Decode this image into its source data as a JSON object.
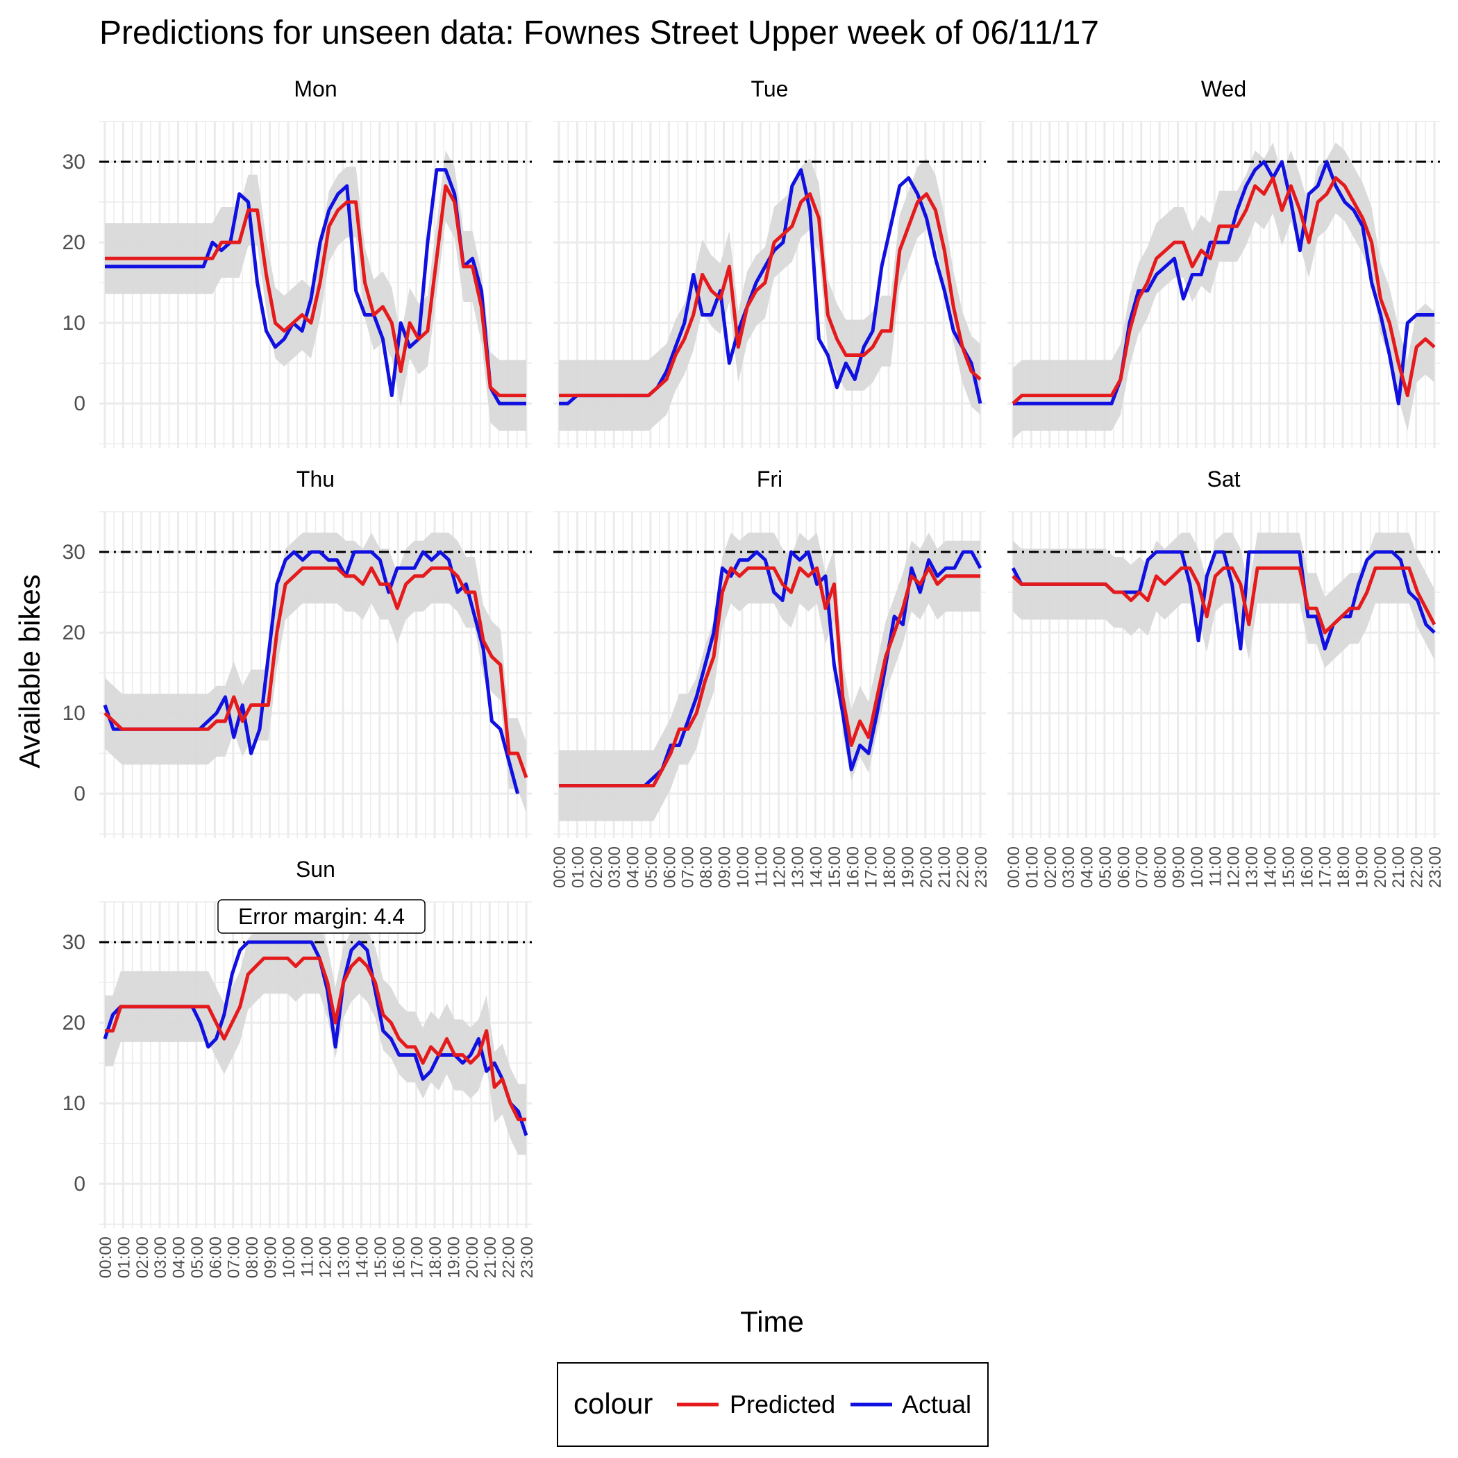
{
  "chart_data": {
    "type": "line",
    "title": "Predictions for unseen data: Fownes Street Upper week of 06/11/17",
    "xlabel": "Time",
    "ylabel": "Available bikes",
    "ylim": [
      -5.5,
      35
    ],
    "yticks": [
      0,
      10,
      20,
      30
    ],
    "capacity_line": 30,
    "grid": true,
    "x_tick_labels": [
      "00:00",
      "01:00",
      "02:00",
      "03:00",
      "04:00",
      "05:00",
      "06:00",
      "07:00",
      "08:00",
      "09:00",
      "10:00",
      "11:00",
      "12:00",
      "13:00",
      "14:00",
      "15:00",
      "16:00",
      "17:00",
      "18:00",
      "19:00",
      "20:00",
      "21:00",
      "22:00",
      "23:00"
    ],
    "error_margin": 4.4,
    "annotation": "Error margin: 4.4",
    "colors": {
      "Predicted": "#e41a1c",
      "Actual": "#1010e0",
      "band": "#d9d9d9",
      "capacity": "#000000"
    },
    "legend": {
      "title": "colour",
      "position": "bottom",
      "entries": [
        "Predicted",
        "Actual"
      ]
    },
    "panels": [
      {
        "name": "Mon",
        "Actual": [
          17,
          17,
          17,
          17,
          17,
          17,
          17,
          17,
          17,
          17,
          17,
          17,
          20,
          19,
          20,
          26,
          25,
          15,
          9,
          7,
          8,
          10,
          9,
          13,
          20,
          24,
          26,
          27,
          14,
          11,
          11,
          8,
          1,
          10,
          7,
          8,
          20,
          29,
          29,
          26,
          17,
          18,
          14,
          2,
          0,
          0,
          0,
          0
        ],
        "Predicted": [
          18,
          18,
          18,
          18,
          18,
          18,
          18,
          18,
          18,
          18,
          18,
          18,
          18,
          20,
          20,
          20,
          24,
          24,
          16,
          10,
          9,
          10,
          11,
          10,
          15,
          22,
          24,
          25,
          25,
          15,
          11,
          12,
          10,
          4,
          10,
          8,
          9,
          18,
          27,
          25,
          17,
          17,
          12,
          2,
          1,
          1,
          1,
          1
        ]
      },
      {
        "name": "Tue",
        "Actual": [
          0,
          0,
          1,
          1,
          1,
          1,
          1,
          1,
          1,
          1,
          1,
          2,
          4,
          7,
          10,
          16,
          11,
          11,
          14,
          5,
          9,
          12,
          15,
          17,
          19,
          20,
          27,
          29,
          24,
          8,
          6,
          2,
          5,
          3,
          7,
          9,
          17,
          22,
          27,
          28,
          26,
          23,
          18,
          14,
          9,
          7,
          5,
          0
        ],
        "Predicted": [
          1,
          1,
          1,
          1,
          1,
          1,
          1,
          1,
          1,
          1,
          1,
          2,
          3,
          6,
          8,
          11,
          16,
          14,
          13,
          17,
          7,
          12,
          14,
          15,
          20,
          21,
          22,
          25,
          26,
          23,
          11,
          8,
          6,
          6,
          6,
          7,
          9,
          9,
          19,
          22,
          25,
          26,
          24,
          19,
          12,
          7,
          4,
          3
        ]
      },
      {
        "name": "Wed",
        "Actual": [
          0,
          0,
          0,
          0,
          0,
          0,
          0,
          0,
          0,
          0,
          0,
          0,
          3,
          10,
          14,
          14,
          16,
          17,
          18,
          13,
          16,
          16,
          20,
          20,
          20,
          24,
          27,
          29,
          30,
          28,
          30,
          25,
          19,
          26,
          27,
          30,
          27,
          25,
          24,
          22,
          15,
          11,
          6,
          0,
          10,
          11,
          11,
          11
        ],
        "Predicted": [
          0,
          1,
          1,
          1,
          1,
          1,
          1,
          1,
          1,
          1,
          1,
          1,
          3,
          9,
          13,
          15,
          18,
          19,
          20,
          20,
          17,
          19,
          18,
          22,
          22,
          22,
          24,
          27,
          26,
          28,
          24,
          27,
          24,
          20,
          25,
          26,
          28,
          27,
          25,
          23,
          20,
          13,
          10,
          5,
          1,
          7,
          8,
          7
        ]
      },
      {
        "name": "Thu",
        "Actual": [
          11,
          8,
          8,
          8,
          8,
          8,
          8,
          8,
          8,
          8,
          8,
          8,
          9,
          10,
          12,
          7,
          11,
          5,
          8,
          17,
          26,
          29,
          30,
          29,
          30,
          30,
          29,
          29,
          27,
          30,
          30,
          30,
          29,
          25,
          28,
          28,
          28,
          30,
          29,
          30,
          29,
          25,
          26,
          22,
          18,
          9,
          8,
          4,
          0
        ],
        "Predicted": [
          10,
          9,
          8,
          8,
          8,
          8,
          8,
          8,
          8,
          8,
          8,
          8,
          8,
          9,
          9,
          12,
          9,
          11,
          11,
          11,
          20,
          26,
          27,
          28,
          28,
          28,
          28,
          28,
          27,
          27,
          26,
          28,
          26,
          26,
          23,
          26,
          27,
          27,
          28,
          28,
          28,
          27,
          25,
          25,
          19,
          17,
          16,
          5,
          5,
          2
        ]
      },
      {
        "name": "Fri",
        "Actual": [
          1,
          1,
          1,
          1,
          1,
          1,
          1,
          1,
          1,
          1,
          1,
          2,
          3,
          6,
          6,
          9,
          12,
          16,
          20,
          28,
          27,
          29,
          29,
          30,
          29,
          25,
          24,
          30,
          29,
          30,
          26,
          27,
          16,
          10,
          3,
          6,
          5,
          10,
          16,
          22,
          21,
          28,
          25,
          29,
          27,
          28,
          28,
          30,
          30,
          28
        ],
        "Predicted": [
          1,
          1,
          1,
          1,
          1,
          1,
          1,
          1,
          1,
          1,
          1,
          1,
          3,
          5,
          8,
          8,
          10,
          14,
          17,
          25,
          28,
          27,
          28,
          28,
          28,
          28,
          26,
          25,
          28,
          27,
          28,
          23,
          26,
          12,
          6,
          9,
          7,
          12,
          17,
          20,
          23,
          27,
          26,
          28,
          26,
          27,
          27,
          27,
          27,
          27
        ]
      },
      {
        "name": "Sat",
        "Actual": [
          28,
          26,
          26,
          26,
          26,
          26,
          26,
          26,
          26,
          26,
          26,
          26,
          25,
          25,
          25,
          25,
          29,
          30,
          30,
          30,
          30,
          26,
          19,
          27,
          30,
          30,
          26,
          18,
          30,
          30,
          30,
          30,
          30,
          30,
          30,
          22,
          22,
          18,
          21,
          22,
          22,
          26,
          29,
          30,
          30,
          30,
          29,
          25,
          24,
          21,
          20
        ],
        "Predicted": [
          27,
          26,
          26,
          26,
          26,
          26,
          26,
          26,
          26,
          26,
          26,
          26,
          25,
          25,
          24,
          25,
          24,
          27,
          26,
          27,
          28,
          28,
          26,
          22,
          27,
          28,
          28,
          26,
          21,
          28,
          28,
          28,
          28,
          28,
          28,
          23,
          23,
          20,
          21,
          22,
          23,
          23,
          25,
          28,
          28,
          28,
          28,
          28,
          25,
          23,
          21
        ]
      },
      {
        "name": "Sun",
        "Actual": [
          18,
          21,
          22,
          22,
          22,
          22,
          22,
          22,
          22,
          22,
          22,
          22,
          20,
          17,
          18,
          21,
          26,
          29,
          30,
          30,
          30,
          30,
          30,
          30,
          30,
          30,
          30,
          28,
          24,
          17,
          25,
          29,
          30,
          29,
          24,
          19,
          18,
          16,
          16,
          16,
          13,
          14,
          16,
          16,
          16,
          15,
          16,
          18,
          14,
          15,
          13,
          10,
          9,
          6
        ],
        "Predicted": [
          19,
          19,
          22,
          22,
          22,
          22,
          22,
          22,
          22,
          22,
          22,
          22,
          22,
          22,
          20,
          18,
          20,
          22,
          26,
          27,
          28,
          28,
          28,
          28,
          27,
          28,
          28,
          28,
          25,
          20,
          25,
          27,
          28,
          27,
          25,
          21,
          20,
          18,
          17,
          17,
          15,
          17,
          16,
          18,
          16,
          16,
          15,
          16,
          19,
          12,
          13,
          10,
          8,
          8
        ]
      }
    ]
  }
}
